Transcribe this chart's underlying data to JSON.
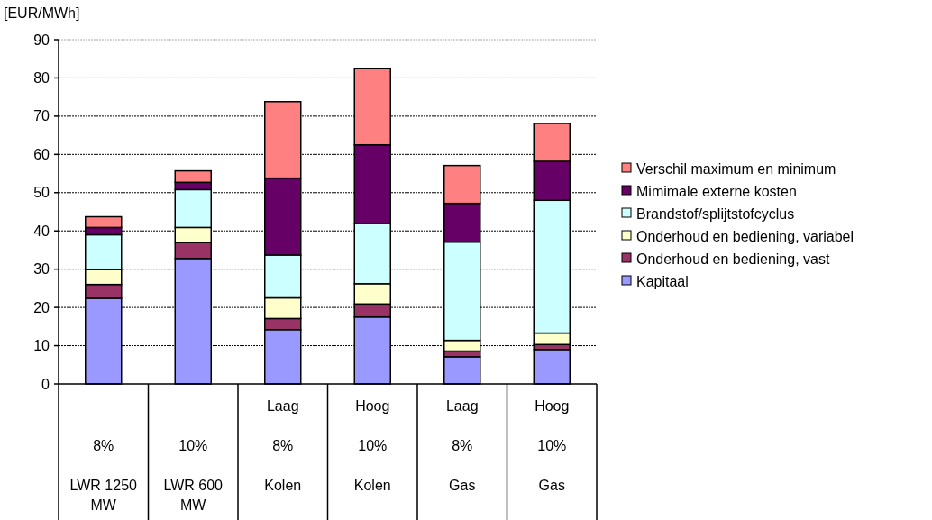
{
  "chart_data": {
    "type": "bar",
    "stacked": true,
    "ylabel": "[EUR/MWh]",
    "categories": [
      "8%\nLWR 1250 MW",
      "10%\nLWR 600 MW",
      "Laag\n8%\nKolen",
      "Hoog\n10%\nKolen",
      "Laag\n8%\nGas",
      "Hoog\n10%\nGas"
    ],
    "series": [
      {
        "name": "Kapitaal",
        "color": "#9999ff",
        "values": [
          22.4,
          32.8,
          14.2,
          17.5,
          7.1,
          9.0
        ]
      },
      {
        "name": "Onderhoud en bediening, vast",
        "color": "#993366",
        "values": [
          3.6,
          4.2,
          2.9,
          3.4,
          1.5,
          1.3
        ]
      },
      {
        "name": "Onderhoud en bediening, variabel",
        "color": "#ffffcc",
        "values": [
          3.9,
          3.9,
          5.4,
          5.3,
          2.8,
          3.0
        ]
      },
      {
        "name": "Brandstof/splijtstofcyclus",
        "color": "#ccffff",
        "values": [
          9.1,
          9.9,
          11.2,
          15.7,
          25.7,
          34.7
        ]
      },
      {
        "name": "Mimimale externe kosten",
        "color": "#660066",
        "values": [
          1.9,
          1.9,
          20.1,
          20.6,
          10.1,
          10.2
        ]
      },
      {
        "name": "Verschil maximum en minimum",
        "color": "#ff8080",
        "values": [
          2.8,
          3.0,
          20.0,
          19.9,
          9.9,
          9.9
        ]
      }
    ],
    "ylim": [
      0,
      90
    ],
    "yticks": [
      0,
      10,
      20,
      30,
      40,
      50,
      60,
      70,
      80,
      90
    ],
    "grid": "y",
    "legend": "right"
  }
}
